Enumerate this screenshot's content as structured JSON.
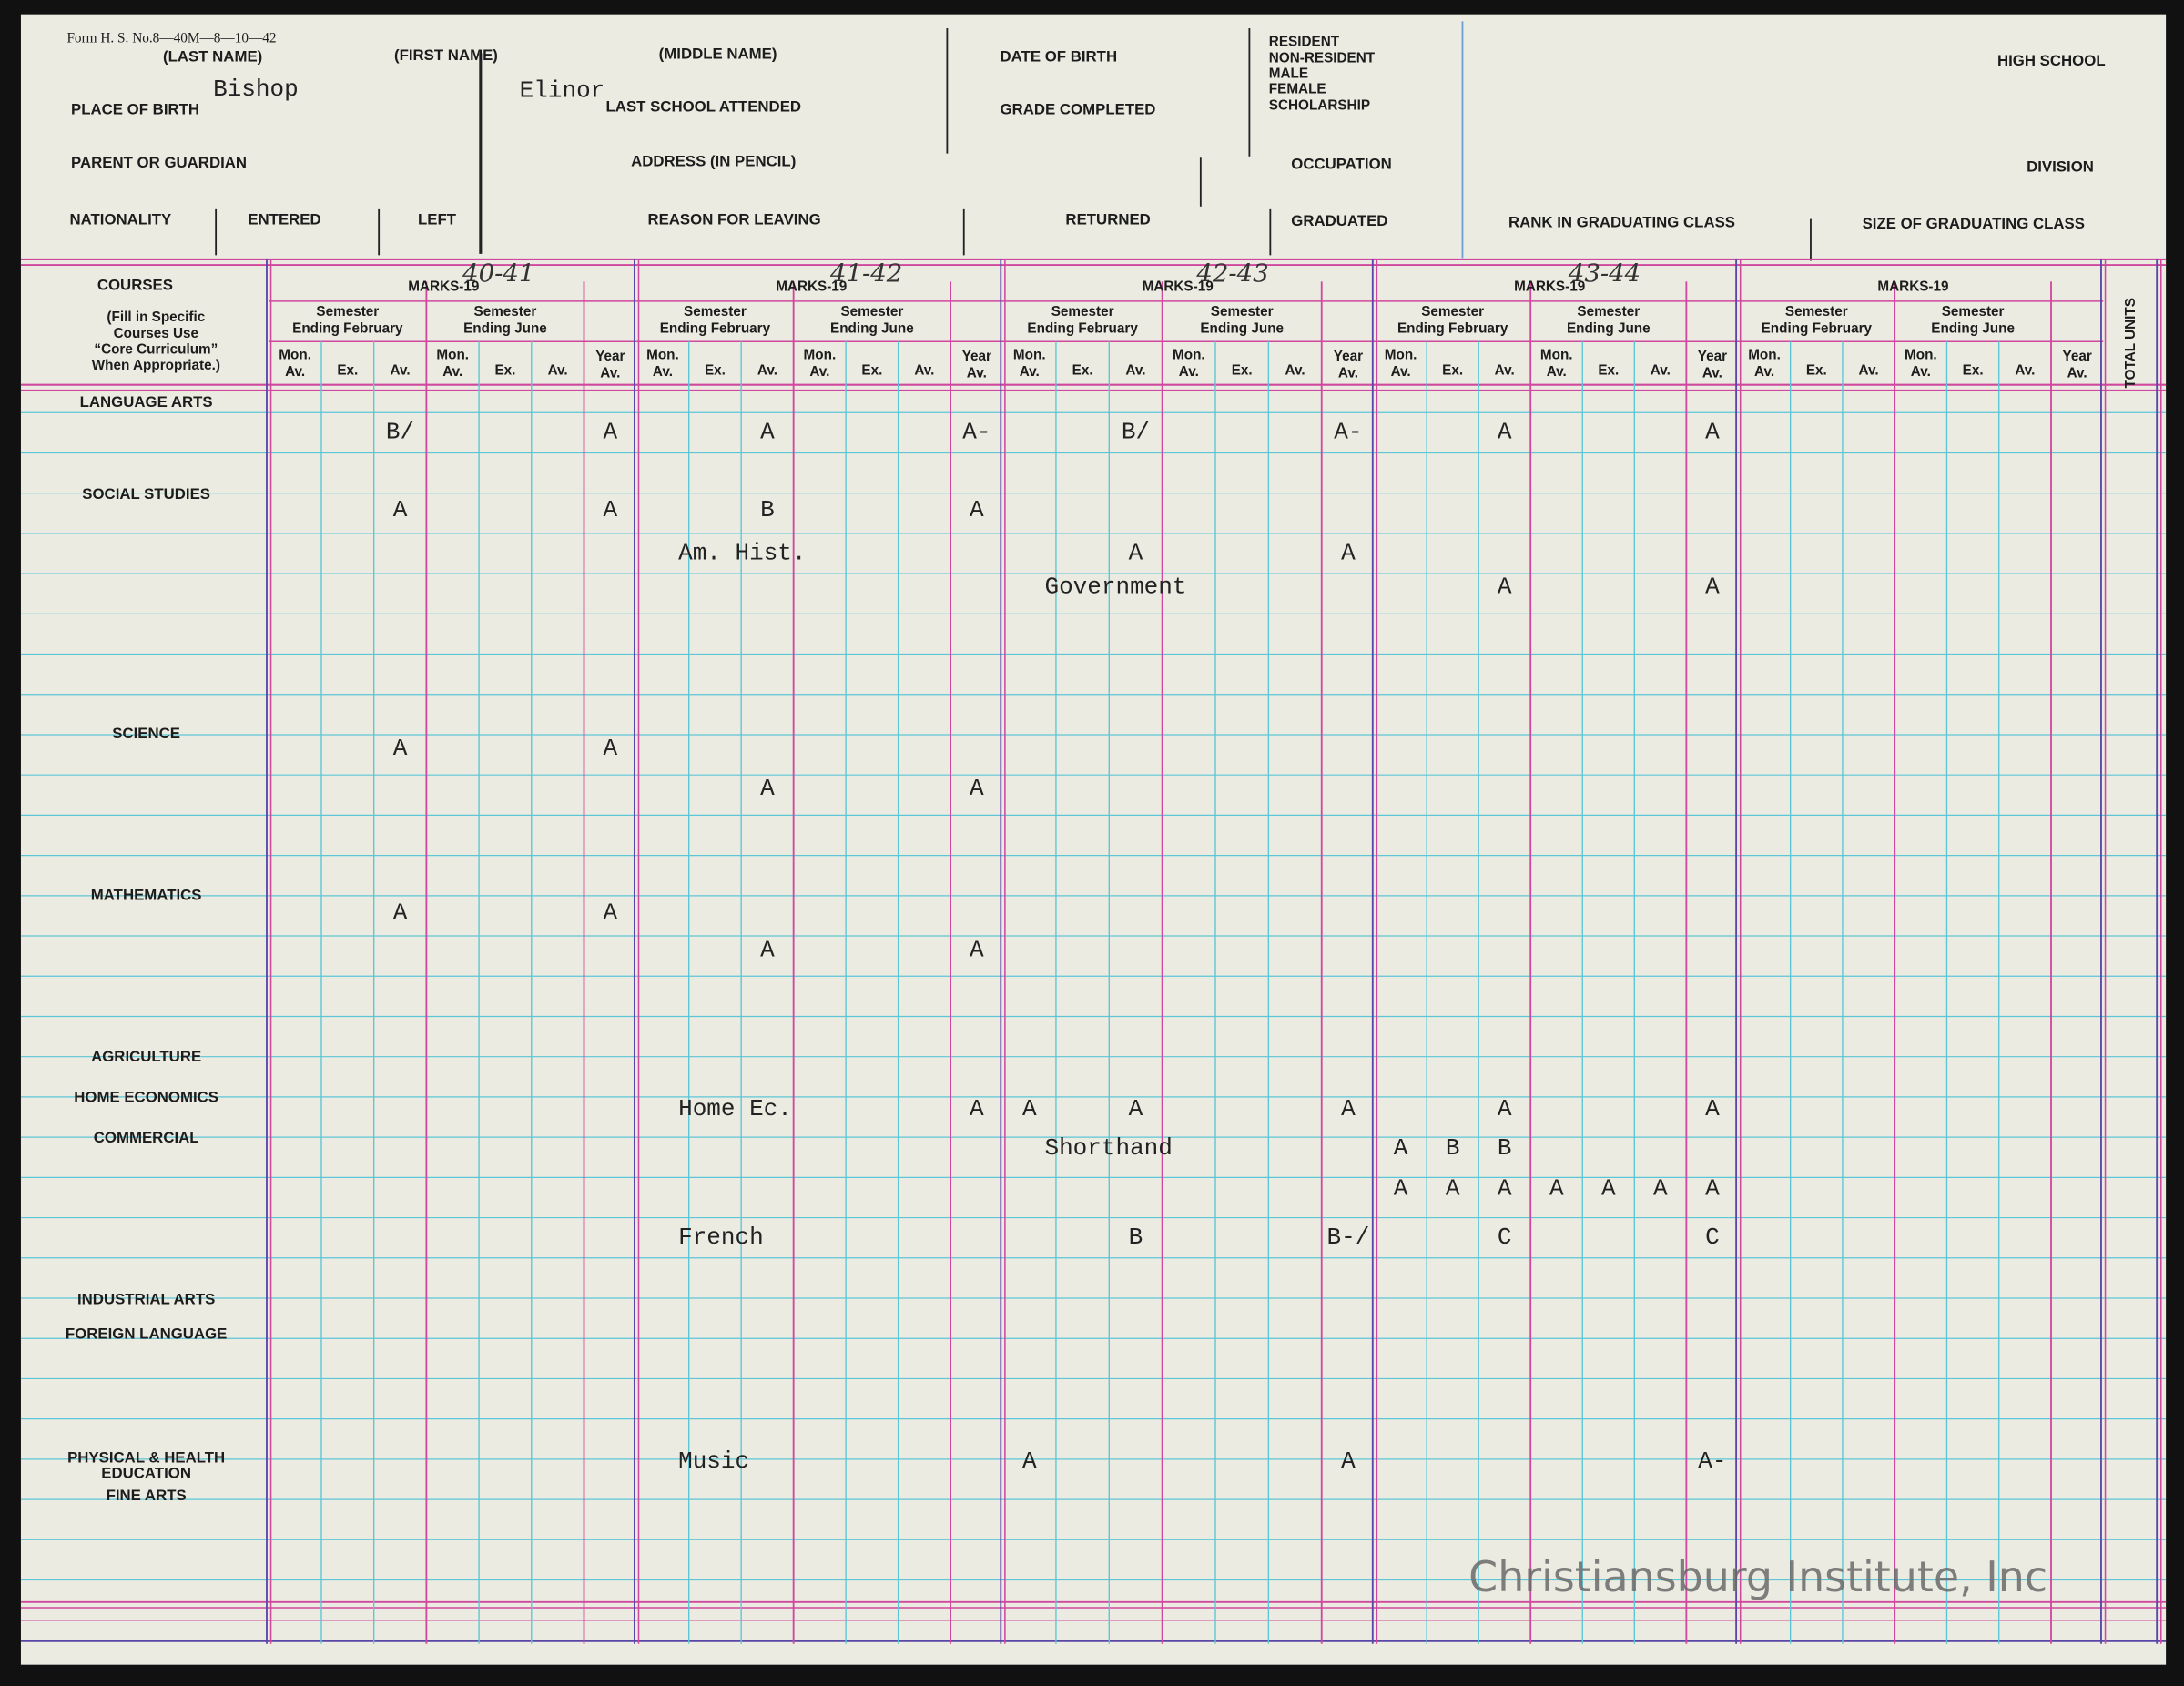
{
  "header": {
    "form_number": "Form H. S. No.8—40M—8—10—42",
    "labels": [
      "(LAST NAME)",
      "(FIRST NAME)",
      "(MIDDLE NAME)",
      "DATE OF BIRTH",
      "RESIDENT",
      "NON-RESIDENT",
      "MALE",
      "FEMALE",
      "SCHOLARSHIP",
      "HIGH SCHOOL",
      "PLACE OF BIRTH",
      "LAST SCHOOL ATTENDED",
      "GRADE COMPLETED",
      "PARENT OR GUARDIAN",
      "ADDRESS (IN PENCIL)",
      "OCCUPATION",
      "DIVISION",
      "NATIONALITY",
      "ENTERED",
      "LEFT",
      "REASON FOR LEAVING",
      "RETURNED",
      "GRADUATED",
      "RANK IN GRADUATING CLASS",
      "SIZE OF GRADUATING CLASS"
    ],
    "last_name": "Bishop",
    "first_name": "Elinor"
  },
  "grid": {
    "courses_heading": "COURSES",
    "courses_note": [
      "(Fill in Specific",
      "Courses Use",
      "“Core Curriculum”",
      "When Appropriate.)"
    ],
    "marks_label": "MARKS-19",
    "years": [
      "40-41",
      "41-42",
      "42-43",
      "43-44",
      null
    ],
    "semester_february": [
      "Semester",
      "Ending February"
    ],
    "semester_june": [
      "Semester",
      "Ending June"
    ],
    "semester_columns": [
      [
        "Mon.",
        "Av."
      ],
      [
        "Ex."
      ],
      [
        "Av."
      ]
    ],
    "year_column": [
      "Year",
      "Av."
    ],
    "total_units": "TOTAL UNITS",
    "subjects": [
      "LANGUAGE ARTS",
      "SOCIAL STUDIES",
      "SCIENCE",
      "MATHEMATICS",
      "AGRICULTURE",
      "HOME ECONOMICS",
      "COMMERCIAL",
      "INDUSTRIAL ARTS",
      "FOREIGN LANGUAGE",
      "PHYSICAL & HEALTH",
      "EDUCATION",
      "FINE ARTS"
    ]
  },
  "records": [
    {
      "course": null,
      "marks": [
        [
          null,
          null,
          "B/",
          null,
          null,
          null,
          "A"
        ],
        [
          null,
          null,
          "A",
          null,
          null,
          null,
          "A-"
        ],
        [
          null,
          null,
          "B/",
          null,
          null,
          null,
          "A-"
        ],
        [
          null,
          null,
          "A",
          null,
          null,
          null,
          "A"
        ],
        [
          null,
          null,
          null,
          null,
          null,
          null,
          null
        ]
      ]
    },
    {
      "course": null,
      "marks": [
        [
          null,
          null,
          "A",
          null,
          null,
          null,
          "A"
        ],
        [
          null,
          null,
          "B",
          null,
          null,
          null,
          "A"
        ],
        [
          null,
          null,
          null,
          null,
          null,
          null,
          null
        ],
        [
          null,
          null,
          null,
          null,
          null,
          null,
          null
        ],
        [
          null,
          null,
          null,
          null,
          null,
          null,
          null
        ]
      ]
    },
    {
      "course": "Am. Hist.",
      "marks": [
        [
          null,
          null,
          null,
          null,
          null,
          null,
          null
        ],
        [
          null,
          null,
          null,
          null,
          null,
          null,
          null
        ],
        [
          null,
          null,
          "A",
          null,
          null,
          null,
          "A"
        ],
        [
          null,
          null,
          null,
          null,
          null,
          null,
          null
        ],
        [
          null,
          null,
          null,
          null,
          null,
          null,
          null
        ]
      ]
    },
    {
      "course": "Government",
      "marks": [
        [
          null,
          null,
          null,
          null,
          null,
          null,
          null
        ],
        [
          null,
          null,
          null,
          null,
          null,
          null,
          null
        ],
        [
          null,
          null,
          null,
          null,
          null,
          null,
          null
        ],
        [
          null,
          null,
          "A",
          null,
          null,
          null,
          "A"
        ],
        [
          null,
          null,
          null,
          null,
          null,
          null,
          null
        ]
      ]
    },
    {
      "course": null,
      "marks": [
        [
          null,
          null,
          "A",
          null,
          null,
          null,
          "A"
        ],
        [
          null,
          null,
          null,
          null,
          null,
          null,
          null
        ],
        [
          null,
          null,
          null,
          null,
          null,
          null,
          null
        ],
        [
          null,
          null,
          null,
          null,
          null,
          null,
          null
        ],
        [
          null,
          null,
          null,
          null,
          null,
          null,
          null
        ]
      ]
    },
    {
      "course": null,
      "marks": [
        [
          null,
          null,
          null,
          null,
          null,
          null,
          null
        ],
        [
          null,
          null,
          "A",
          null,
          null,
          null,
          "A"
        ],
        [
          null,
          null,
          null,
          null,
          null,
          null,
          null
        ],
        [
          null,
          null,
          null,
          null,
          null,
          null,
          null
        ],
        [
          null,
          null,
          null,
          null,
          null,
          null,
          null
        ]
      ]
    },
    {
      "course": null,
      "marks": [
        [
          null,
          null,
          "A",
          null,
          null,
          null,
          "A"
        ],
        [
          null,
          null,
          null,
          null,
          null,
          null,
          null
        ],
        [
          null,
          null,
          null,
          null,
          null,
          null,
          null
        ],
        [
          null,
          null,
          null,
          null,
          null,
          null,
          null
        ],
        [
          null,
          null,
          null,
          null,
          null,
          null,
          null
        ]
      ]
    },
    {
      "course": null,
      "marks": [
        [
          null,
          null,
          null,
          null,
          null,
          null,
          null
        ],
        [
          null,
          null,
          "A",
          null,
          null,
          null,
          "A"
        ],
        [
          null,
          null,
          null,
          null,
          null,
          null,
          null
        ],
        [
          null,
          null,
          null,
          null,
          null,
          null,
          null
        ],
        [
          null,
          null,
          null,
          null,
          null,
          null,
          null
        ]
      ]
    },
    {
      "course": "Home Ec.",
      "marks": [
        [
          null,
          null,
          null,
          null,
          null,
          null,
          null
        ],
        [
          null,
          null,
          null,
          null,
          null,
          null,
          "A"
        ],
        [
          "A",
          null,
          "A",
          null,
          null,
          null,
          "A"
        ],
        [
          null,
          null,
          "A",
          null,
          null,
          null,
          "A"
        ],
        [
          null,
          null,
          null,
          null,
          null,
          null,
          null
        ]
      ]
    },
    {
      "course": "Shorthand",
      "marks": [
        [
          null,
          null,
          null,
          null,
          null,
          null,
          null
        ],
        [
          null,
          null,
          null,
          null,
          null,
          null,
          null
        ],
        [
          null,
          null,
          null,
          null,
          null,
          null,
          null
        ],
        [
          "A",
          "B",
          "B",
          null,
          null,
          null,
          null
        ],
        [
          null,
          null,
          null,
          null,
          null,
          null,
          null
        ]
      ]
    },
    {
      "course": null,
      "marks": [
        [
          null,
          null,
          null,
          null,
          null,
          null,
          null
        ],
        [
          null,
          null,
          null,
          null,
          null,
          null,
          null
        ],
        [
          null,
          null,
          null,
          null,
          null,
          null,
          null
        ],
        [
          "A",
          "A",
          "A",
          "A",
          "A",
          "A",
          "A"
        ],
        [
          null,
          null,
          null,
          null,
          null,
          null,
          null
        ]
      ]
    },
    {
      "course": "French",
      "marks": [
        [
          null,
          null,
          null,
          null,
          null,
          null,
          null
        ],
        [
          null,
          null,
          null,
          null,
          null,
          null,
          null
        ],
        [
          null,
          null,
          "B",
          null,
          null,
          null,
          "B-/"
        ],
        [
          null,
          null,
          "C",
          null,
          null,
          null,
          "C"
        ],
        [
          null,
          null,
          null,
          null,
          null,
          null,
          null
        ]
      ]
    },
    {
      "course": "Music",
      "marks": [
        [
          null,
          null,
          null,
          null,
          null,
          null,
          null
        ],
        [
          null,
          null,
          null,
          null,
          null,
          null,
          null
        ],
        [
          "A",
          null,
          null,
          null,
          null,
          null,
          "A"
        ],
        [
          null,
          null,
          null,
          null,
          null,
          null,
          "A-"
        ],
        [
          null,
          null,
          null,
          null,
          null,
          null,
          null
        ]
      ]
    }
  ],
  "watermark": "Christiansburg Institute, Inc"
}
